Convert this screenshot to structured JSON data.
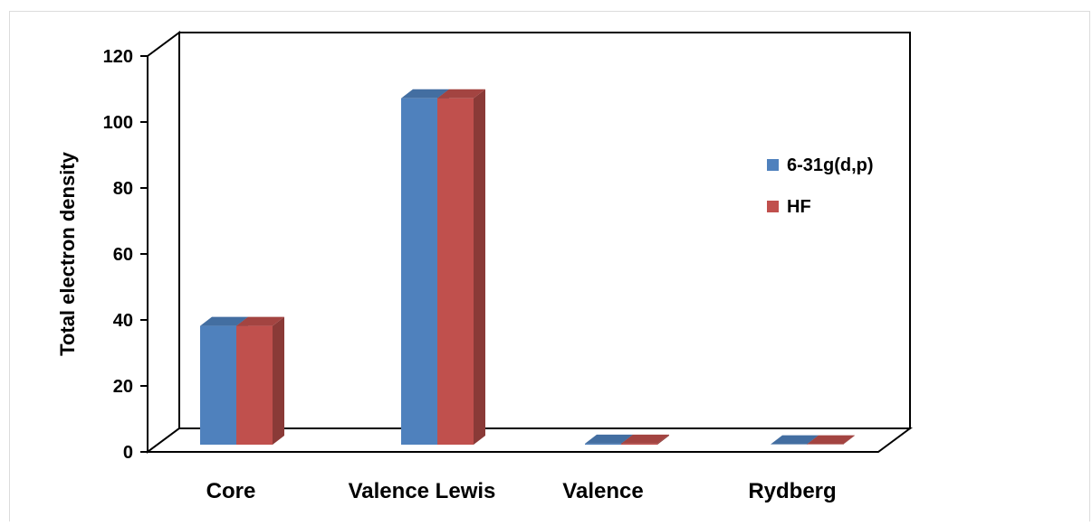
{
  "chart_data": {
    "type": "bar",
    "title": "",
    "xlabel": "",
    "ylabel": "Total electron density",
    "ylim": [
      0,
      120
    ],
    "yticks": [
      "0",
      "20",
      "40",
      "60",
      "80",
      "100",
      "120"
    ],
    "categories": [
      "Core",
      "Valence Lewis",
      "Valence",
      "Rydberg"
    ],
    "series": [
      {
        "name": "6-31g(d,p)",
        "color": "#4f81bd",
        "values": [
          36,
          105,
          0.3,
          0.1
        ]
      },
      {
        "name": "HF",
        "color": "#c0504d",
        "values": [
          36,
          105,
          0.3,
          0.1
        ]
      }
    ],
    "grid": false,
    "legend": "right",
    "style": "3d-clustered-bar"
  }
}
